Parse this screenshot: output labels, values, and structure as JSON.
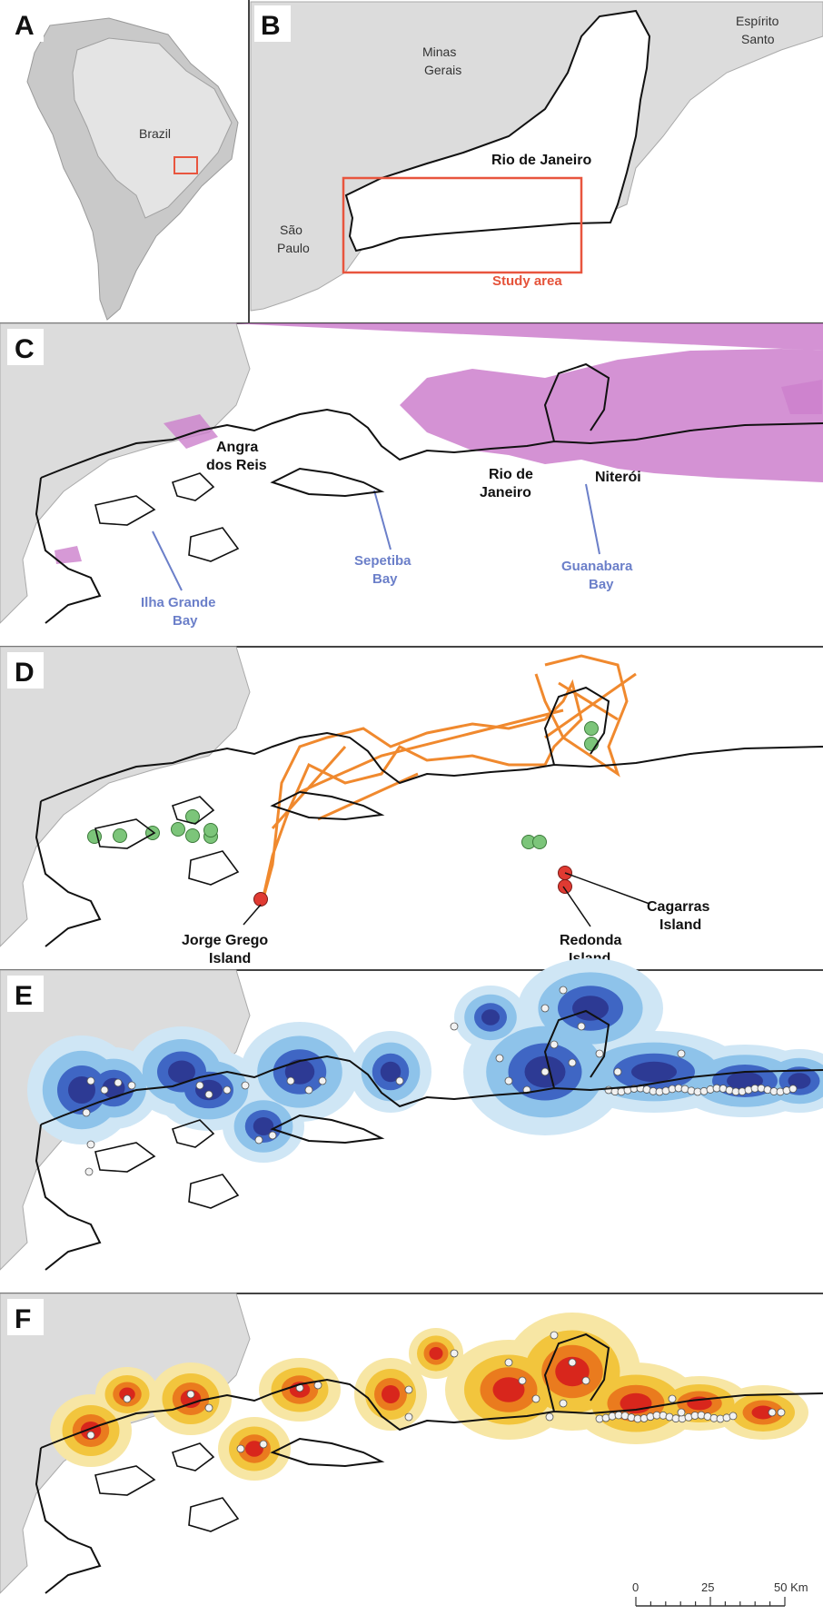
{
  "panels": {
    "a": {
      "letter": "A",
      "brazil": "Brazil"
    },
    "b": {
      "letter": "B",
      "minas": "Minas",
      "gerais": "Gerais",
      "espirito": "Espírito",
      "santo": "Santo",
      "rio": "Rio de Janeiro",
      "sao": "São",
      "paulo": "Paulo",
      "study": "Study area"
    },
    "c": {
      "letter": "C",
      "angra1": "Angra",
      "angra2": "dos Reis",
      "rio1": "Rio de",
      "rio2": "Janeiro",
      "niteroi": "Niterói",
      "sepetiba1": "Sepetiba",
      "sepetiba2": "Bay",
      "guanabara1": "Guanabara",
      "guanabara2": "Bay",
      "ilha1": "Ilha Grande",
      "ilha2": "Bay"
    },
    "d": {
      "letter": "D",
      "jorge1": "Jorge Grego",
      "jorge2": "Island",
      "redonda1": "Redonda",
      "redonda2": "Island",
      "cagarras1": "Cagarras",
      "cagarras2": "Island"
    },
    "e": {
      "letter": "E"
    },
    "f": {
      "letter": "F"
    }
  },
  "scale_bar": {
    "t0": "0",
    "t1": "25",
    "t2": "50 Km"
  },
  "colors": {
    "land": "#d8d8d8",
    "study_box": "#e8553e",
    "urban": "#cc7fcc",
    "track": "#f0892e",
    "colony_green": "#7cc57a",
    "colony_red": "#e03a32",
    "label_blue": "#6b7fc9",
    "kde_blue": [
      "#cfe6f5",
      "#8ec3ea",
      "#3f66c4",
      "#2d3a94"
    ],
    "kde_heat": [
      "#f7e6a4",
      "#f2c53d",
      "#ea7b1e",
      "#d8261c"
    ]
  }
}
